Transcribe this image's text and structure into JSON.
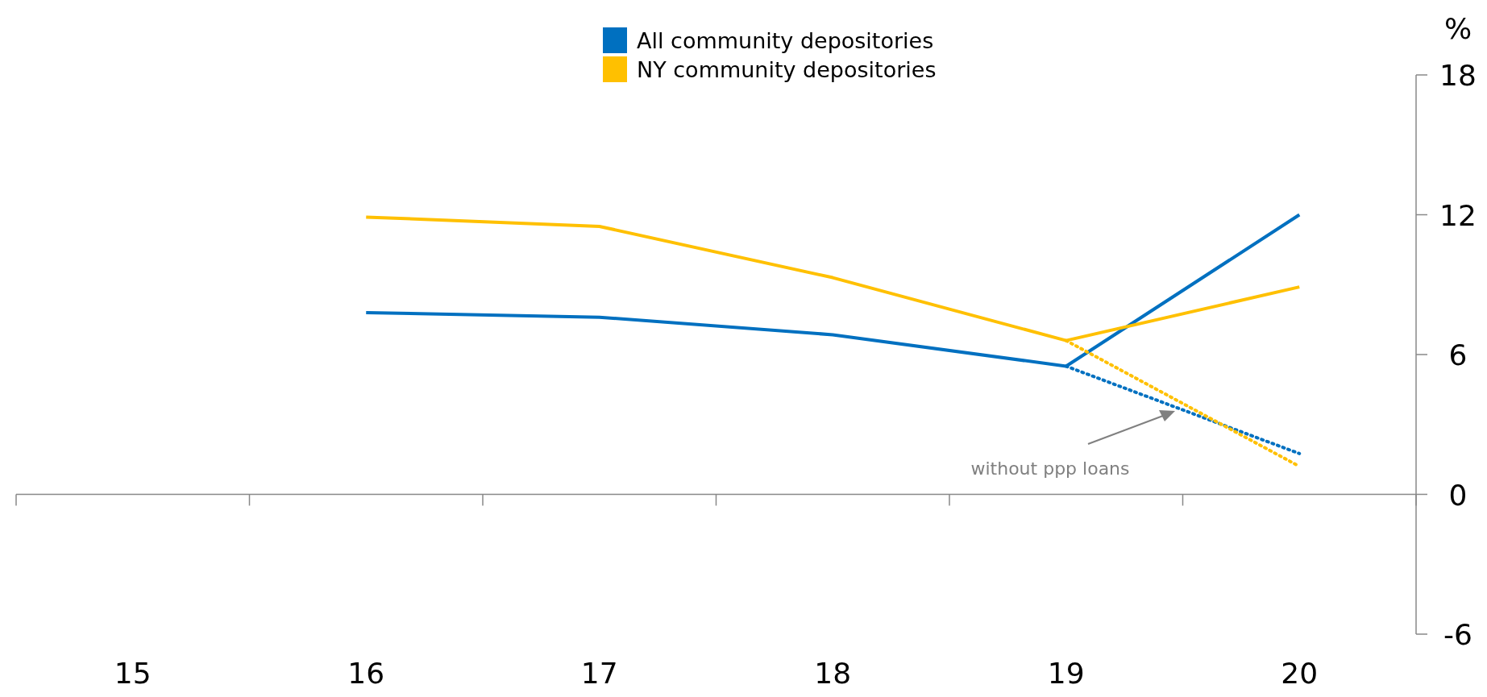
{
  "chart_data": {
    "type": "line",
    "categories": [
      "15",
      "16",
      "17",
      "18",
      "19",
      "20"
    ],
    "ylabel": "%",
    "ylim": [
      -6,
      18
    ],
    "yticks": [
      -6,
      0,
      6,
      12,
      18
    ],
    "legend": "top",
    "series": [
      {
        "name": "All community depositories",
        "color": "#0070c0",
        "values": [
          null,
          7.8,
          7.6,
          6.85,
          5.5,
          12.0
        ],
        "line_style": "solid"
      },
      {
        "name": "NY community depositories",
        "color": "#ffc000",
        "values": [
          null,
          11.9,
          11.5,
          9.3,
          6.6,
          8.9
        ],
        "line_style": "solid"
      },
      {
        "color": "#0070c0",
        "values": [
          null,
          null,
          null,
          null,
          5.5,
          1.75
        ],
        "line_style": "dotted"
      },
      {
        "color": "#ffc000",
        "values": [
          null,
          null,
          null,
          null,
          6.6,
          1.2
        ],
        "line_style": "dotted"
      }
    ],
    "annotations": [
      "without ppp loans"
    ]
  }
}
